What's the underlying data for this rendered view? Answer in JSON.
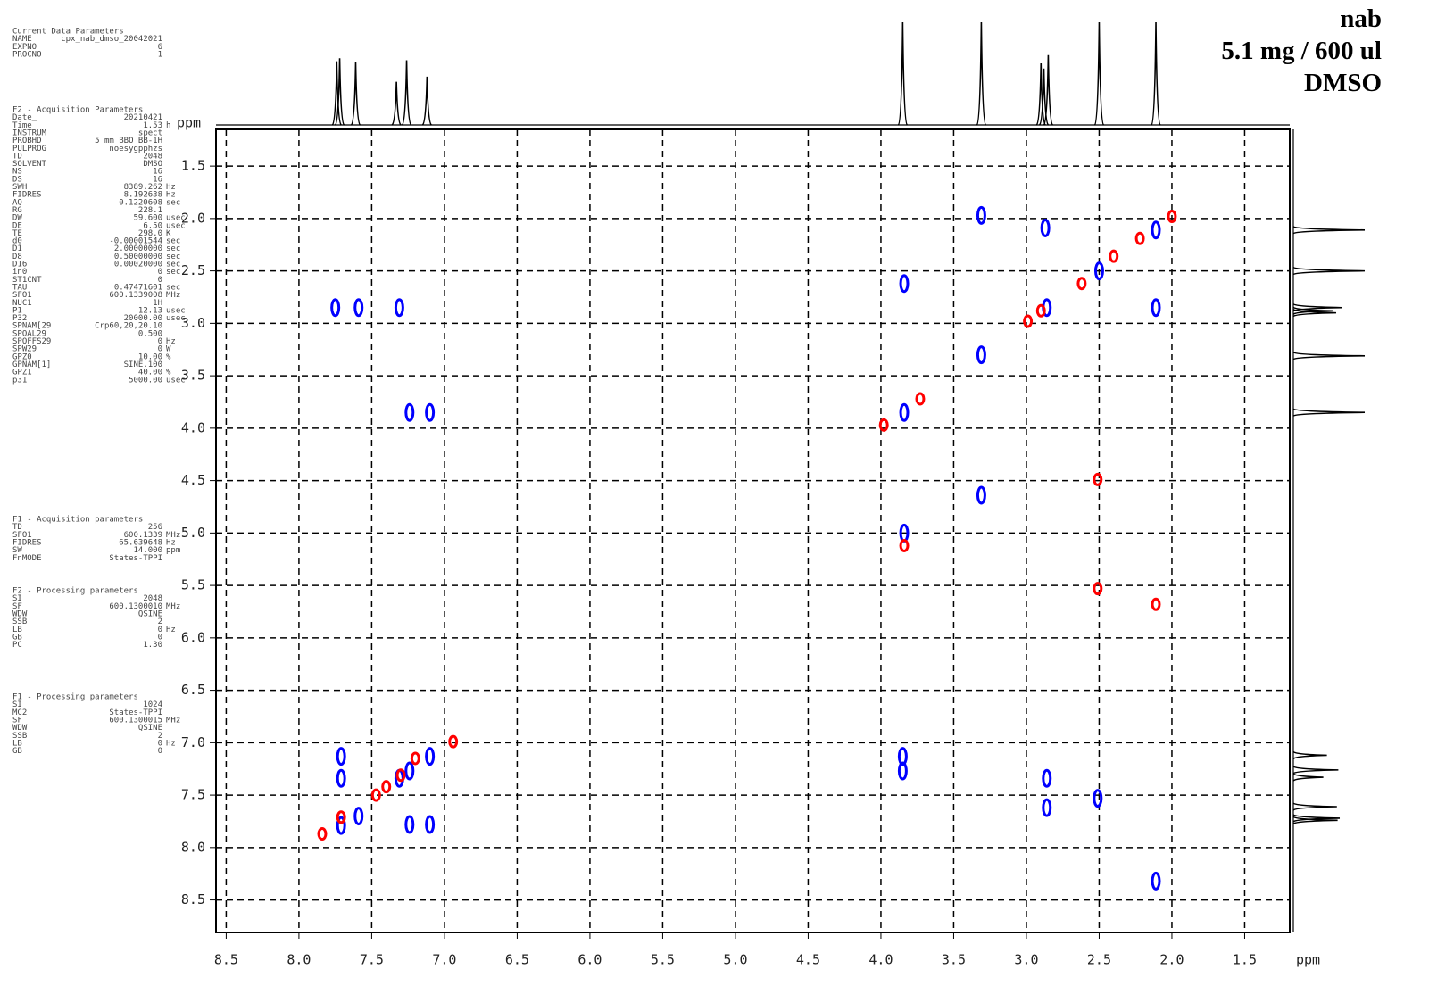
{
  "parameters": [
    {
      "heading": "Current Data Parameters",
      "rows": [
        [
          "NAME",
          "cpx_nab_dmso_20042021"
        ],
        [
          "EXPNO",
          "6"
        ],
        [
          "PROCNO",
          "1"
        ]
      ]
    },
    {
      "heading": "F2 - Acquisition Parameters",
      "rows": [
        [
          "Date_",
          "20210421"
        ],
        [
          "Time",
          "1.53",
          "h"
        ],
        [
          "INSTRUM",
          "spect"
        ],
        [
          "PROBHD",
          "5 mm BBO BB-1H"
        ],
        [
          "PULPROG",
          "noesygpphzs"
        ],
        [
          "TD",
          "2048"
        ],
        [
          "SOLVENT",
          "DMSO"
        ],
        [
          "NS",
          "16"
        ],
        [
          "DS",
          "16"
        ],
        [
          "SWH",
          "8389.262",
          "Hz"
        ],
        [
          "FIDRES",
          "8.192638",
          "Hz"
        ],
        [
          "AQ",
          "0.1220608",
          "sec"
        ],
        [
          "RG",
          "228.1"
        ],
        [
          "DW",
          "59.600",
          "usec"
        ],
        [
          "DE",
          "6.50",
          "usec"
        ],
        [
          "TE",
          "298.0",
          "K"
        ],
        [
          "d0",
          "-0.00001544",
          "sec"
        ],
        [
          "D1",
          "2.00000000",
          "sec"
        ],
        [
          "D8",
          "0.50000000",
          "sec"
        ],
        [
          "D16",
          "0.00020000",
          "sec"
        ],
        [
          "in0",
          "0",
          "sec"
        ],
        [
          "ST1CNT",
          "0"
        ],
        [
          "TAU",
          "0.47471601",
          "sec"
        ],
        [
          "SFO1",
          "600.1339008",
          "MHz"
        ],
        [
          "NUC1",
          "1H"
        ],
        [
          "P1",
          "12.13",
          "usec"
        ],
        [
          "P32",
          "20000.00",
          "usec"
        ],
        [
          "SPNAM[29",
          "Crp60,20,20.10"
        ],
        [
          "SPOAL29",
          "0.500"
        ],
        [
          "SPOFFS29",
          "0",
          "Hz"
        ],
        [
          "SPW29",
          "0",
          "W"
        ],
        [
          "GPZ0",
          "10.00",
          "%"
        ],
        [
          "GPNAM[1]",
          "SINE.100"
        ],
        [
          "GPZ1",
          "40.00",
          "%"
        ],
        [
          "p31",
          "5000.00",
          "usec"
        ]
      ]
    },
    {
      "heading": "F1 - Acquisition parameters",
      "rows": [
        [
          "TD",
          "256"
        ],
        [
          "SFO1",
          "600.1339",
          "MHz"
        ],
        [
          "FIDRES",
          "65.639648",
          "Hz"
        ],
        [
          "SW",
          "14.000",
          "ppm"
        ],
        [
          "FnMODE",
          "States-TPPI"
        ]
      ]
    },
    {
      "heading": "F2 - Processing parameters",
      "rows": [
        [
          "SI",
          "2048"
        ],
        [
          "SF",
          "600.1300010",
          "MHz"
        ],
        [
          "WDW",
          "QSINE"
        ],
        [
          "SSB",
          "2"
        ],
        [
          "LB",
          "0",
          "Hz"
        ],
        [
          "GB",
          "0"
        ],
        [
          "PC",
          "1.30"
        ]
      ]
    },
    {
      "heading": "F1 - Processing parameters",
      "rows": [
        [
          "SI",
          "1024"
        ],
        [
          "MC2",
          "States-TPPI"
        ],
        [
          "SF",
          "600.1300015",
          "MHz"
        ],
        [
          "WDW",
          "QSINE"
        ],
        [
          "SSB",
          "2"
        ],
        [
          "LB",
          "0",
          "Hz"
        ],
        [
          "GB",
          "0"
        ]
      ]
    }
  ],
  "chart_data": {
    "type": "noesy",
    "title": [
      "nab",
      "5.1 mg / 600 ul",
      "DMSO"
    ],
    "x_label": "ppm",
    "y_label": "ppm",
    "xlim": [
      8.57,
      1.19
    ],
    "ylim": [
      1.15,
      8.81
    ],
    "xticks": [
      8.5,
      {
        "value": 8,
        "label": "8.0"
      },
      7.5,
      {
        "value": 7,
        "label": "7.0"
      },
      6.5,
      {
        "value": 6,
        "label": "6.0"
      },
      5.5,
      {
        "value": 5,
        "label": "5.0"
      },
      4.5,
      {
        "value": 4,
        "label": "4.0"
      },
      3.5,
      {
        "value": 3,
        "label": "3.0"
      },
      2.5,
      {
        "value": 2,
        "label": "2.0"
      },
      1.5
    ],
    "yticks": [
      1.5,
      {
        "value": 2,
        "label": "2.0"
      },
      2.5,
      {
        "value": 3,
        "label": "3.0"
      },
      3.5,
      {
        "value": 4,
        "label": "4.0"
      },
      4.5,
      {
        "value": 5,
        "label": "5.0"
      },
      5.5,
      {
        "value": 6,
        "label": "6.0"
      },
      6.5,
      {
        "value": 7,
        "label": "7.0"
      },
      7.5,
      {
        "value": 8,
        "label": "8.0"
      },
      8.5
    ],
    "grid": true,
    "projection": {
      "ppm": [
        7.74,
        7.72,
        7.61,
        7.33,
        7.26,
        7.12,
        3.85,
        3.31,
        2.9,
        2.88,
        2.85,
        2.5,
        2.11
      ],
      "heights": [
        62,
        65,
        61,
        42,
        63,
        47,
        100,
        100,
        60,
        55,
        68,
        100,
        100
      ]
    },
    "crosspeaks": [
      {
        "color": "#0000ff",
        "x": [
          3.31,
          2.87,
          2.11,
          2.5,
          3.84,
          2.86,
          2.11,
          7.75,
          7.59,
          7.31,
          3.31,
          3.84,
          7.24,
          7.1,
          3.31,
          3.84,
          7.71,
          7.71,
          3.85,
          3.85,
          2.86,
          2.86,
          2.51,
          2.11,
          7.71,
          7.59,
          7.31,
          7.24,
          7.1,
          7.24,
          7.1
        ],
        "y": [
          1.97,
          2.09,
          2.11,
          2.5,
          2.62,
          2.85,
          2.85,
          2.85,
          2.85,
          2.85,
          3.3,
          3.85,
          3.85,
          3.85,
          4.64,
          5.0,
          7.13,
          7.34,
          7.13,
          7.27,
          7.34,
          7.62,
          7.53,
          8.32,
          7.79,
          7.7,
          7.34,
          7.27,
          7.13,
          7.78,
          7.78
        ]
      },
      {
        "color": "#ff0000",
        "x": [
          2.0,
          2.22,
          2.4,
          2.62,
          2.99,
          2.9,
          3.73,
          3.98,
          2.51,
          2.51,
          2.11,
          3.84,
          6.94,
          7.84,
          7.47,
          7.4,
          7.71,
          7.3,
          7.2
        ],
        "y": [
          1.98,
          2.19,
          2.36,
          2.62,
          2.98,
          2.88,
          3.72,
          3.97,
          4.49,
          5.53,
          5.68,
          5.12,
          6.99,
          7.87,
          7.5,
          7.42,
          7.71,
          7.31,
          7.15
        ]
      }
    ]
  }
}
